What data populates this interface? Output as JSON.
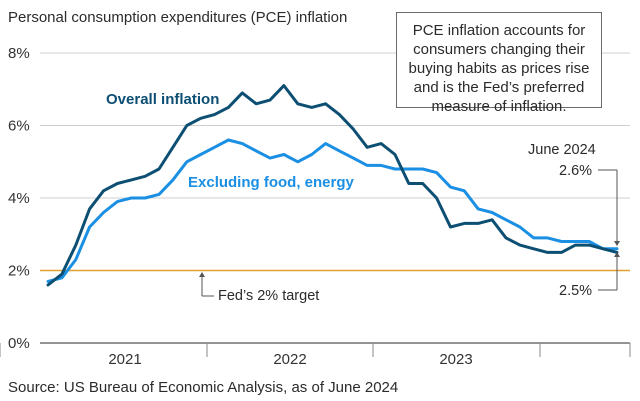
{
  "chart_data": {
    "type": "line",
    "title": "Personal consumption expenditures (PCE) inflation",
    "ylim": [
      0,
      8
    ],
    "yticks": [
      "0%",
      "2%",
      "4%",
      "6%",
      "8%"
    ],
    "x_year_labels": [
      "2021",
      "2022",
      "2023"
    ],
    "grid": true,
    "series": [
      {
        "name": "Overall inflation",
        "color": "#0d4f73",
        "values": [
          1.6,
          1.9,
          2.7,
          3.7,
          4.2,
          4.4,
          4.5,
          4.6,
          4.8,
          5.4,
          6.0,
          6.2,
          6.3,
          6.5,
          6.9,
          6.6,
          6.7,
          7.1,
          6.6,
          6.5,
          6.6,
          6.3,
          5.9,
          5.4,
          5.5,
          5.2,
          4.4,
          4.4,
          4.0,
          3.2,
          3.3,
          3.3,
          3.4,
          2.9,
          2.7,
          2.6,
          2.5,
          2.5,
          2.7,
          2.7,
          2.6,
          2.5
        ]
      },
      {
        "name": "Excluding food, energy",
        "color": "#1a8fe3",
        "values": [
          1.7,
          1.8,
          2.3,
          3.2,
          3.6,
          3.9,
          4.0,
          4.0,
          4.1,
          4.5,
          5.0,
          5.2,
          5.4,
          5.6,
          5.5,
          5.3,
          5.1,
          5.2,
          5.0,
          5.2,
          5.5,
          5.3,
          5.1,
          4.9,
          4.9,
          4.8,
          4.8,
          4.8,
          4.7,
          4.3,
          4.2,
          3.7,
          3.6,
          3.4,
          3.2,
          2.9,
          2.9,
          2.8,
          2.8,
          2.8,
          2.6,
          2.6
        ]
      }
    ],
    "reference_line": {
      "value": 2.0,
      "label": "Fed’s 2% target",
      "color": "#e0a030"
    },
    "annotations": {
      "date_label": "June 2024",
      "core_label": "2.6%",
      "overall_label": "2.5%",
      "note": "PCE inflation accounts for consumers changing their buying habits as prices rise and is the Fed’s preferred measure of inflation."
    },
    "source": "Source: US Bureau of Economic Analysis, as of June 2024"
  }
}
